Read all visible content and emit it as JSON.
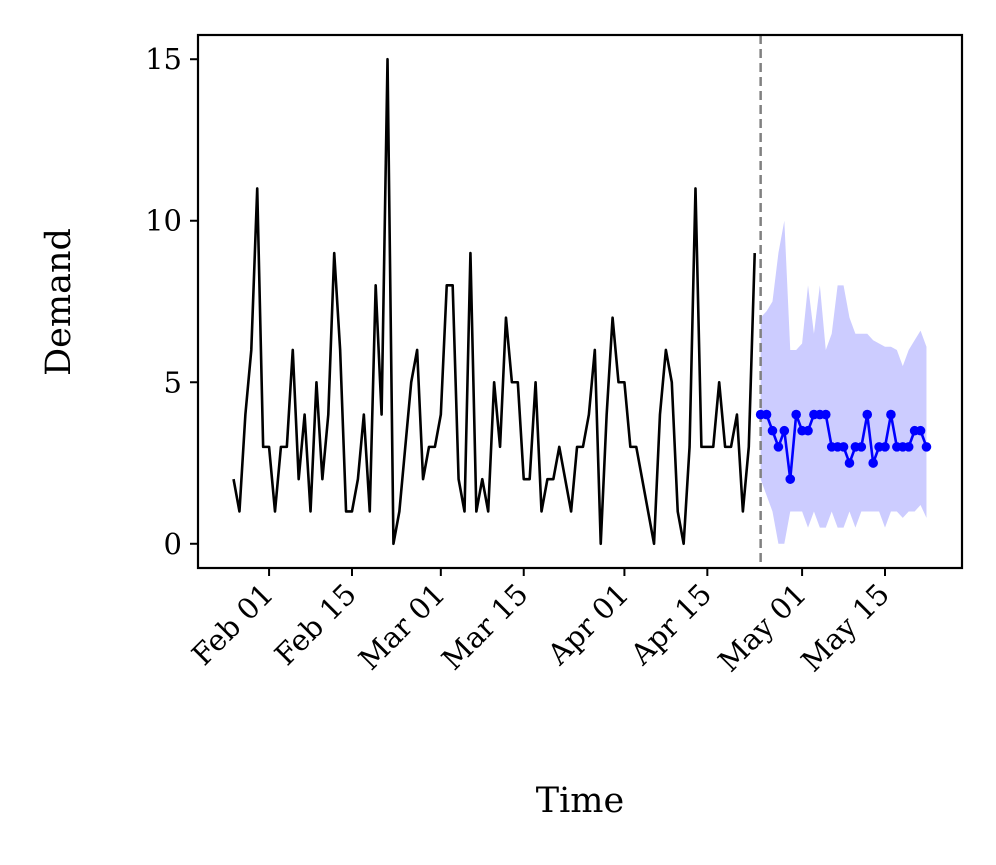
{
  "chart_data": {
    "type": "line",
    "xlabel": "Time",
    "ylabel": "Demand",
    "xlim": [
      "Jan 20",
      "May 28"
    ],
    "ylim": [
      -0.75,
      15.75
    ],
    "xticks": [
      "Feb 01",
      "Feb 15",
      "Mar 01",
      "Mar 15",
      "Apr 01",
      "Apr 15",
      "May 01",
      "May 15"
    ],
    "yticks": [
      0,
      5,
      10,
      15
    ],
    "vline": {
      "x": "Apr 24",
      "color": "#808080",
      "style": "dashed"
    },
    "series": [
      {
        "color": "#000000",
        "x": [
          "Jan 26",
          "Jan 27",
          "Jan 28",
          "Jan 29",
          "Jan 30",
          "Jan 31",
          "Feb 01",
          "Feb 02",
          "Feb 03",
          "Feb 04",
          "Feb 05",
          "Feb 06",
          "Feb 07",
          "Feb 08",
          "Feb 09",
          "Feb 10",
          "Feb 11",
          "Feb 12",
          "Feb 13",
          "Feb 14",
          "Feb 15",
          "Feb 16",
          "Feb 17",
          "Feb 18",
          "Feb 19",
          "Feb 20",
          "Feb 21",
          "Feb 22",
          "Feb 23",
          "Feb 24",
          "Feb 25",
          "Feb 26",
          "Feb 27",
          "Feb 28",
          "Feb 29",
          "Mar 01",
          "Mar 02",
          "Mar 03",
          "Mar 04",
          "Mar 05",
          "Mar 06",
          "Mar 07",
          "Mar 08",
          "Mar 09",
          "Mar 10",
          "Mar 11",
          "Mar 12",
          "Mar 13",
          "Mar 14",
          "Mar 15",
          "Mar 16",
          "Mar 17",
          "Mar 18",
          "Mar 19",
          "Mar 20",
          "Mar 21",
          "Mar 22",
          "Mar 23",
          "Mar 24",
          "Mar 25",
          "Mar 26",
          "Mar 27",
          "Mar 28",
          "Mar 29",
          "Mar 30",
          "Mar 31",
          "Apr 01",
          "Apr 02",
          "Apr 03",
          "Apr 04",
          "Apr 05",
          "Apr 06",
          "Apr 07",
          "Apr 08",
          "Apr 09",
          "Apr 10",
          "Apr 11",
          "Apr 12",
          "Apr 13",
          "Apr 14",
          "Apr 15",
          "Apr 16",
          "Apr 17",
          "Apr 18",
          "Apr 19",
          "Apr 20",
          "Apr 21",
          "Apr 22",
          "Apr 23"
        ],
        "values": [
          2,
          1,
          4,
          6,
          11,
          3,
          3,
          1,
          3,
          3,
          6,
          2,
          4,
          1,
          5,
          2,
          4,
          9,
          6,
          1,
          1,
          2,
          4,
          1,
          8,
          4,
          15,
          0,
          1,
          3,
          5,
          6,
          2,
          3,
          3,
          4,
          8,
          8,
          2,
          1,
          9,
          1,
          2,
          1,
          5,
          3,
          7,
          5,
          5,
          2,
          2,
          5,
          1,
          2,
          2,
          3,
          2,
          1,
          3,
          3,
          4,
          6,
          0,
          4,
          7,
          5,
          5,
          3,
          3,
          2,
          1,
          0,
          4,
          6,
          5,
          1,
          0,
          3,
          11,
          3,
          3,
          3,
          5,
          3,
          3,
          4,
          1,
          3,
          9
        ]
      },
      {
        "color": "#0000ff",
        "marker": true,
        "band_color": "#ccccff",
        "x": [
          "Apr 24",
          "Apr 25",
          "Apr 26",
          "Apr 27",
          "Apr 28",
          "Apr 29",
          "Apr 30",
          "May 01",
          "May 02",
          "May 03",
          "May 04",
          "May 05",
          "May 06",
          "May 07",
          "May 08",
          "May 09",
          "May 10",
          "May 11",
          "May 12",
          "May 13",
          "May 14",
          "May 15",
          "May 16",
          "May 17",
          "May 18",
          "May 19",
          "May 20",
          "May 21",
          "May 22"
        ],
        "values": [
          4,
          4,
          3.5,
          3,
          3.5,
          2,
          4,
          3.5,
          3.5,
          4,
          4,
          4,
          3,
          3,
          3,
          2.5,
          3,
          3,
          4,
          2.5,
          3,
          3,
          4,
          3,
          3,
          3,
          3.5,
          3.5,
          3
        ],
        "upper": [
          7,
          7.2,
          7.5,
          9,
          10,
          6,
          6,
          6.2,
          8,
          6.5,
          8,
          6,
          6.5,
          8,
          8,
          7,
          6.5,
          6.5,
          6.5,
          6.3,
          6.2,
          6.1,
          6.1,
          6,
          5.5,
          6,
          6.3,
          6.6,
          6.1
        ],
        "lower": [
          2,
          1.5,
          1,
          0,
          0,
          1,
          1,
          1,
          0.5,
          1,
          0.5,
          0.5,
          1,
          0.5,
          0.5,
          1,
          0.5,
          1,
          1,
          1,
          1,
          0.5,
          1,
          1,
          0.8,
          1,
          1,
          1.2,
          0.8
        ]
      }
    ]
  }
}
